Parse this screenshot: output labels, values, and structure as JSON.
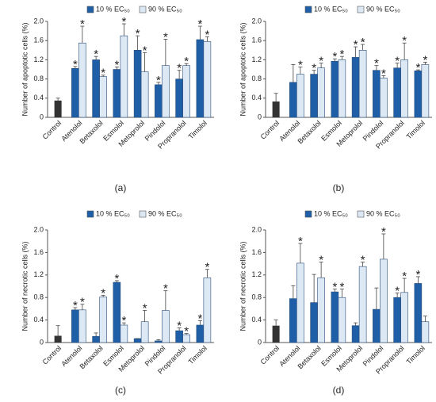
{
  "chart_data": [
    {
      "type": "bar",
      "label": "(a)",
      "ylabel": "Number of apoptotic cells (%)",
      "marker": "*",
      "categories": [
        "Control",
        "Atenolol",
        "Betaxolol",
        "Esmolol",
        "Metoprolol",
        "Pindolol",
        "Propranolol",
        "Timolol"
      ],
      "control": {
        "value": 0.35,
        "error": 0.05,
        "color": "#333333"
      },
      "series": [
        {
          "name": "10 % EC₅₀",
          "color": "#1f5fa8",
          "values": [
            null,
            1.02,
            1.2,
            1.0,
            1.4,
            0.68,
            0.8,
            1.62
          ],
          "errors": [
            null,
            0.04,
            0.07,
            0.05,
            0.3,
            0.05,
            0.18,
            0.28
          ],
          "significant": [
            false,
            true,
            true,
            true,
            true,
            true,
            true,
            true
          ]
        },
        {
          "name": "90 % EC₅₀",
          "color": "#dde8f5",
          "values": [
            null,
            1.55,
            0.85,
            1.7,
            0.95,
            1.08,
            1.08,
            1.58
          ],
          "errors": [
            null,
            0.35,
            0.03,
            0.25,
            0.4,
            0.55,
            0.04,
            0.1
          ],
          "significant": [
            false,
            true,
            true,
            true,
            true,
            true,
            true,
            true
          ]
        }
      ],
      "ylim": [
        0,
        2
      ],
      "yticks": [
        0,
        0.4,
        0.8,
        1.2,
        1.6,
        {
          "value": 2,
          "label": "2.0"
        }
      ]
    },
    {
      "type": "bar",
      "label": "(b)",
      "ylabel": "Number of apoptotic cells (%)",
      "marker": "*",
      "categories": [
        "Control",
        "Atenolol",
        "Betaxolol",
        "Esmolol",
        "Metoprolol",
        "Pindolol",
        "Propranolol",
        "Timolol"
      ],
      "control": {
        "value": 0.33,
        "error": 0.17,
        "color": "#333333"
      },
      "series": [
        {
          "name": "10 % EC₅₀",
          "color": "#1f5fa8",
          "values": [
            null,
            0.73,
            0.9,
            1.17,
            1.25,
            0.98,
            1.03,
            0.97
          ],
          "errors": [
            null,
            0.37,
            0.08,
            0.05,
            0.22,
            0.1,
            0.1,
            0.02
          ],
          "significant": [
            false,
            false,
            true,
            true,
            true,
            true,
            true,
            true
          ]
        },
        {
          "name": "90 % EC₅₀",
          "color": "#dde8f5",
          "values": [
            null,
            0.9,
            1.03,
            1.2,
            1.4,
            0.82,
            1.2,
            1.1
          ],
          "errors": [
            null,
            0.15,
            0.1,
            0.07,
            0.12,
            0.05,
            0.35,
            0.05
          ],
          "significant": [
            false,
            true,
            true,
            true,
            true,
            true,
            true,
            true
          ]
        }
      ],
      "ylim": [
        0,
        2
      ],
      "yticks": [
        0,
        0.4,
        0.8,
        1.2,
        1.6,
        {
          "value": 2,
          "label": "2.0"
        }
      ]
    },
    {
      "type": "bar",
      "label": "(c)",
      "ylabel": "Number of necrotic cells (%)",
      "marker": "*",
      "categories": [
        "Control",
        "Atenolol",
        "Betaxolol",
        "Esmolol",
        "Metoprolol",
        "Pindolol",
        "Propranolol",
        "Timolol"
      ],
      "control": {
        "value": 0.12,
        "error": 0.18,
        "color": "#333333"
      },
      "series": [
        {
          "name": "10 % EC₅₀",
          "color": "#1f5fa8",
          "values": [
            null,
            0.58,
            0.11,
            1.07,
            0.07,
            0.03,
            0.21,
            0.31
          ],
          "errors": [
            null,
            0.04,
            0.06,
            0.03,
            0,
            0.02,
            0.05,
            0.08
          ],
          "significant": [
            false,
            true,
            false,
            true,
            false,
            false,
            true,
            true
          ]
        },
        {
          "name": "90 % EC₅₀",
          "color": "#dde8f5",
          "values": [
            null,
            0.58,
            0.81,
            0.31,
            0.37,
            0.57,
            0.14,
            1.15
          ],
          "errors": [
            null,
            0.1,
            0.03,
            0.04,
            0.2,
            0.35,
            0.02,
            0.15
          ],
          "significant": [
            false,
            true,
            true,
            true,
            true,
            true,
            true,
            true
          ]
        }
      ],
      "ylim": [
        0,
        2
      ],
      "yticks": [
        0,
        0.4,
        0.8,
        1.2,
        1.6,
        {
          "value": 2,
          "label": "2.0"
        }
      ]
    },
    {
      "type": "bar",
      "label": "(d)",
      "ylabel": "Number of necrotic cells (%)",
      "marker": "*",
      "categories": [
        "Control",
        "Atenolol",
        "Betaxolol",
        "Esmolol",
        "Metoprolol",
        "Pindolol",
        "Propranolol",
        "Timolol"
      ],
      "control": {
        "value": 0.3,
        "error": 0.1,
        "color": "#333333"
      },
      "series": [
        {
          "name": "10 % EC₅₀",
          "color": "#1f5fa8",
          "values": [
            null,
            0.78,
            0.71,
            0.9,
            0.3,
            0.59,
            0.8,
            1.05
          ],
          "errors": [
            null,
            0.23,
            0.5,
            0.05,
            0.05,
            0.38,
            0.08,
            0.12
          ],
          "significant": [
            false,
            false,
            false,
            true,
            false,
            false,
            true,
            true
          ]
        },
        {
          "name": "90 % EC₅₀",
          "color": "#dde8f5",
          "values": [
            null,
            1.41,
            1.15,
            0.8,
            1.35,
            1.48,
            0.89,
            0.37
          ],
          "errors": [
            null,
            0.35,
            0.28,
            0.15,
            0.08,
            0.45,
            0.25,
            0.1
          ],
          "significant": [
            false,
            true,
            true,
            true,
            true,
            true,
            true,
            false
          ]
        }
      ],
      "ylim": [
        0,
        2
      ],
      "yticks": [
        0,
        0.4,
        0.8,
        1.2,
        1.6,
        {
          "value": 2,
          "label": "2.0"
        }
      ]
    }
  ]
}
